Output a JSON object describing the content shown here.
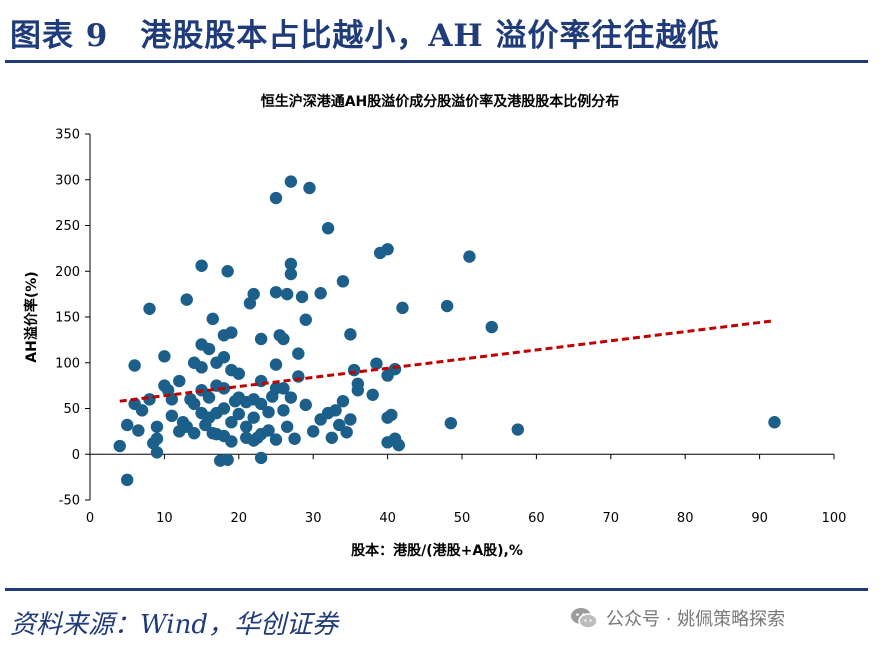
{
  "header": {
    "title": "图表 9　港股股本占比越小，AH 溢价率往往越低"
  },
  "footer": {
    "source": "资料来源：Wind，华创证券",
    "watermark": "公众号 · 姚佩策略探索"
  },
  "icons": {
    "watermark_icon": "wechat-icon"
  },
  "colors": {
    "title": "#1f3b7a",
    "marker": "#1b5f8a",
    "trendline": "#c00000",
    "axis": "#000000"
  },
  "chart_data": {
    "type": "scatter",
    "title": "恒生沪深港通AH股溢价成分股溢价率及港股股本比例分布",
    "xlabel": "股本：港股/(港股+A股),%",
    "ylabel": "AH溢价率(%)",
    "xlim": [
      0,
      100
    ],
    "ylim": [
      -50,
      350
    ],
    "xticks": [
      0,
      10,
      20,
      30,
      40,
      50,
      60,
      70,
      80,
      90,
      100
    ],
    "yticks": [
      -50,
      0,
      50,
      100,
      150,
      200,
      250,
      300,
      350
    ],
    "grid": false,
    "legend": "none",
    "trendline": {
      "style": "dashed",
      "x": [
        4,
        92
      ],
      "y": [
        58,
        146
      ]
    },
    "points": [
      [
        4,
        9
      ],
      [
        5,
        -28
      ],
      [
        5,
        32
      ],
      [
        6,
        55
      ],
      [
        6,
        97
      ],
      [
        6.5,
        26
      ],
      [
        7,
        48
      ],
      [
        8,
        159
      ],
      [
        8,
        60
      ],
      [
        8.5,
        12
      ],
      [
        9,
        2
      ],
      [
        9,
        17
      ],
      [
        9,
        30
      ],
      [
        10,
        75
      ],
      [
        10,
        107
      ],
      [
        10.5,
        70
      ],
      [
        11,
        60
      ],
      [
        11,
        42
      ],
      [
        12,
        80
      ],
      [
        12,
        25
      ],
      [
        12.5,
        35
      ],
      [
        13,
        169
      ],
      [
        13,
        30
      ],
      [
        13.5,
        60
      ],
      [
        14,
        100
      ],
      [
        14,
        55
      ],
      [
        14,
        23
      ],
      [
        15,
        206
      ],
      [
        15,
        120
      ],
      [
        15,
        95
      ],
      [
        15,
        70
      ],
      [
        15,
        45
      ],
      [
        15.5,
        32
      ],
      [
        16,
        115
      ],
      [
        16,
        62
      ],
      [
        16,
        40
      ],
      [
        16.5,
        148
      ],
      [
        16.5,
        23
      ],
      [
        17,
        100
      ],
      [
        17,
        75
      ],
      [
        17,
        45
      ],
      [
        17,
        22
      ],
      [
        17.5,
        -7
      ],
      [
        18,
        130
      ],
      [
        18,
        106
      ],
      [
        18,
        72
      ],
      [
        18,
        50
      ],
      [
        18,
        20
      ],
      [
        18.5,
        200
      ],
      [
        18.5,
        -6
      ],
      [
        19,
        133
      ],
      [
        19,
        92
      ],
      [
        19,
        35
      ],
      [
        19,
        14
      ],
      [
        19.5,
        58
      ],
      [
        20,
        88
      ],
      [
        20,
        62
      ],
      [
        20,
        44
      ],
      [
        21,
        57
      ],
      [
        21,
        30
      ],
      [
        21,
        18
      ],
      [
        21.5,
        165
      ],
      [
        22,
        175
      ],
      [
        22,
        60
      ],
      [
        22,
        40
      ],
      [
        22,
        15
      ],
      [
        22.5,
        18
      ],
      [
        23,
        126
      ],
      [
        23,
        80
      ],
      [
        23,
        55
      ],
      [
        23,
        22
      ],
      [
        23,
        -4
      ],
      [
        24,
        46
      ],
      [
        24,
        26
      ],
      [
        24.5,
        63
      ],
      [
        25,
        280
      ],
      [
        25,
        177
      ],
      [
        25,
        98
      ],
      [
        25,
        72
      ],
      [
        25,
        16
      ],
      [
        25.5,
        130
      ],
      [
        26,
        126
      ],
      [
        26,
        72
      ],
      [
        26,
        48
      ],
      [
        26.5,
        175
      ],
      [
        26.5,
        30
      ],
      [
        27,
        298
      ],
      [
        27,
        208
      ],
      [
        27,
        197
      ],
      [
        27,
        62
      ],
      [
        27.5,
        17
      ],
      [
        28,
        110
      ],
      [
        28,
        85
      ],
      [
        28.5,
        172
      ],
      [
        29,
        147
      ],
      [
        29,
        54
      ],
      [
        29.5,
        291
      ],
      [
        30,
        25
      ],
      [
        31,
        176
      ],
      [
        31,
        38
      ],
      [
        32,
        247
      ],
      [
        32,
        45
      ],
      [
        32.5,
        18
      ],
      [
        33,
        48
      ],
      [
        33.5,
        32
      ],
      [
        34,
        189
      ],
      [
        34,
        58
      ],
      [
        34.5,
        24
      ],
      [
        35,
        131
      ],
      [
        35,
        38
      ],
      [
        35.5,
        92
      ],
      [
        36,
        70
      ],
      [
        36,
        77
      ],
      [
        38,
        65
      ],
      [
        38.5,
        99
      ],
      [
        39,
        220
      ],
      [
        40,
        224
      ],
      [
        40,
        86
      ],
      [
        40,
        40
      ],
      [
        40,
        13
      ],
      [
        40.5,
        43
      ],
      [
        41,
        17
      ],
      [
        41,
        93
      ],
      [
        41.5,
        10
      ],
      [
        42,
        160
      ],
      [
        48,
        162
      ],
      [
        48.5,
        34
      ],
      [
        51,
        216
      ],
      [
        54,
        139
      ],
      [
        57.5,
        27
      ],
      [
        92,
        35
      ]
    ]
  }
}
